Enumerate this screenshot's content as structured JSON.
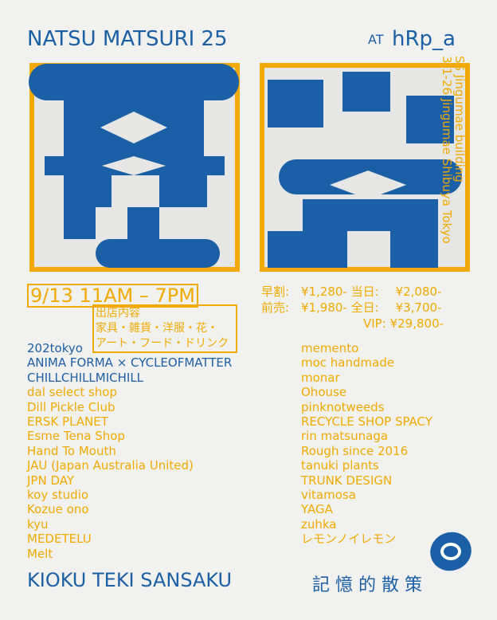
{
  "header": {
    "title": "NATSU MATSURI 25",
    "at": "AT",
    "venue": "hRp_a"
  },
  "address": [
    "SS Jingumae building",
    "3-1-26 Jingumae Shibuya Tokyo"
  ],
  "date": "9/13 11AM – 7PM",
  "prices": [
    {
      "label": "早割:",
      "price": "¥1,280-"
    },
    {
      "label": "当日:",
      "price": "¥2,080-"
    },
    {
      "label": "前売:",
      "price": "¥1,980-"
    },
    {
      "label": "全日:",
      "price": "¥3,700-"
    },
    {
      "label": "VIP:",
      "price": "¥29,800-"
    }
  ],
  "exhibit": {
    "heading": "出店内容",
    "lines": [
      "家具・雑貨・洋服・花・",
      "アート・フード・ドリンク"
    ]
  },
  "vendors_left": [
    "202tokyo",
    "ANIMA FORMA × CYCLEOFMATTER",
    "CHILLCHILLMICHILL",
    "dal select shop",
    "Dill Pickle Club",
    "ERSK PLANET",
    "Esme Tena Shop",
    "Hand To Mouth",
    "JAU (Japan Australia United)",
    "JPN DAY",
    "koy studio",
    "Kozue ono",
    "kyu",
    "MEDETELU",
    "Melt"
  ],
  "vendors_right": [
    "memento",
    "moc handmade",
    "monar",
    "Ohouse",
    "pinknotweeds",
    "RECYCLE SHOP SPACY",
    "rin matsunaga",
    "Rough since 2016",
    "tanuki plants",
    "TRUNK DESIGN",
    "vitamosa",
    "YAGA",
    "zuhka",
    "レモンノイレモン"
  ],
  "footer": {
    "title": "KIOKU TEKI SANSAKU",
    "japanese": "記 憶 的 散 策"
  }
}
